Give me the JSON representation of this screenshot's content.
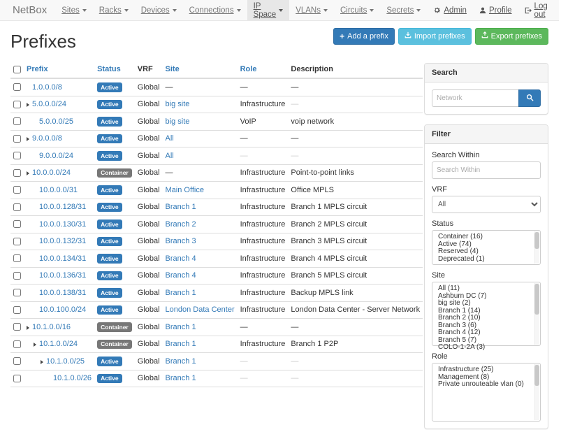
{
  "navbar": {
    "brand": "NetBox",
    "items": [
      {
        "label": "Sites",
        "active": false
      },
      {
        "label": "Racks",
        "active": false
      },
      {
        "label": "Devices",
        "active": false
      },
      {
        "label": "Connections",
        "active": false
      },
      {
        "label": "IP Space",
        "active": true
      },
      {
        "label": "VLANs",
        "active": false
      },
      {
        "label": "Circuits",
        "active": false
      },
      {
        "label": "Secrets",
        "active": false
      }
    ],
    "right": {
      "admin": "Admin",
      "profile": "Profile",
      "logout": "Log out"
    }
  },
  "page": {
    "title": "Prefixes"
  },
  "toolbar": {
    "add": "Add a prefix",
    "import": "Import prefixes",
    "export": "Export prefixes"
  },
  "table": {
    "columns": {
      "prefix": "Prefix",
      "status": "Status",
      "vrf": "VRF",
      "site": "Site",
      "role": "Role",
      "description": "Description"
    },
    "rows": [
      {
        "prefix": "1.0.0.0/8",
        "depth": 0,
        "children": false,
        "status": "Active",
        "vrf": "Global",
        "site": "—",
        "role": "—",
        "desc": "—",
        "site_muted": false,
        "role_muted": false,
        "desc_muted": false
      },
      {
        "prefix": "5.0.0.0/24",
        "depth": 0,
        "children": true,
        "status": "Active",
        "vrf": "Global",
        "site": "big site",
        "role": "Infrastructure",
        "desc": "—",
        "site_muted": false,
        "role_muted": false,
        "desc_muted": true
      },
      {
        "prefix": "5.0.0.0/25",
        "depth": 1,
        "children": false,
        "status": "Active",
        "vrf": "Global",
        "site": "big site",
        "role": "VoIP",
        "desc": "voip network",
        "site_muted": false,
        "role_muted": false,
        "desc_muted": false
      },
      {
        "prefix": "9.0.0.0/8",
        "depth": 0,
        "children": true,
        "status": "Active",
        "vrf": "Global",
        "site": "All",
        "role": "—",
        "desc": "—",
        "site_muted": false,
        "role_muted": false,
        "desc_muted": false
      },
      {
        "prefix": "9.0.0.0/24",
        "depth": 1,
        "children": false,
        "status": "Active",
        "vrf": "Global",
        "site": "All",
        "role": "—",
        "desc": "—",
        "site_muted": false,
        "role_muted": true,
        "desc_muted": true
      },
      {
        "prefix": "10.0.0.0/24",
        "depth": 0,
        "children": true,
        "status": "Container",
        "vrf": "Global",
        "site": "—",
        "role": "Infrastructure",
        "desc": "Point-to-point links",
        "site_muted": false,
        "role_muted": false,
        "desc_muted": false
      },
      {
        "prefix": "10.0.0.0/31",
        "depth": 1,
        "children": false,
        "status": "Active",
        "vrf": "Global",
        "site": "Main Office",
        "role": "Infrastructure",
        "desc": "Office MPLS",
        "site_muted": false,
        "role_muted": false,
        "desc_muted": false
      },
      {
        "prefix": "10.0.0.128/31",
        "depth": 1,
        "children": false,
        "status": "Active",
        "vrf": "Global",
        "site": "Branch 1",
        "role": "Infrastructure",
        "desc": "Branch 1 MPLS circuit",
        "site_muted": false,
        "role_muted": false,
        "desc_muted": false
      },
      {
        "prefix": "10.0.0.130/31",
        "depth": 1,
        "children": false,
        "status": "Active",
        "vrf": "Global",
        "site": "Branch 2",
        "role": "Infrastructure",
        "desc": "Branch 2 MPLS circuit",
        "site_muted": false,
        "role_muted": false,
        "desc_muted": false
      },
      {
        "prefix": "10.0.0.132/31",
        "depth": 1,
        "children": false,
        "status": "Active",
        "vrf": "Global",
        "site": "Branch 3",
        "role": "Infrastructure",
        "desc": "Branch 3 MPLS circuit",
        "site_muted": false,
        "role_muted": false,
        "desc_muted": false
      },
      {
        "prefix": "10.0.0.134/31",
        "depth": 1,
        "children": false,
        "status": "Active",
        "vrf": "Global",
        "site": "Branch 4",
        "role": "Infrastructure",
        "desc": "Branch 4 MPLS circuit",
        "site_muted": false,
        "role_muted": false,
        "desc_muted": false
      },
      {
        "prefix": "10.0.0.136/31",
        "depth": 1,
        "children": false,
        "status": "Active",
        "vrf": "Global",
        "site": "Branch 4",
        "role": "Infrastructure",
        "desc": "Branch 5 MPLS circuit",
        "site_muted": false,
        "role_muted": false,
        "desc_muted": false
      },
      {
        "prefix": "10.0.0.138/31",
        "depth": 1,
        "children": false,
        "status": "Active",
        "vrf": "Global",
        "site": "Branch 1",
        "role": "Infrastructure",
        "desc": "Backup MPLS link",
        "site_muted": false,
        "role_muted": false,
        "desc_muted": false
      },
      {
        "prefix": "10.0.100.0/24",
        "depth": 1,
        "children": false,
        "status": "Active",
        "vrf": "Global",
        "site": "London Data Center",
        "role": "Infrastructure",
        "desc": "London Data Center - Server Network",
        "site_muted": false,
        "role_muted": false,
        "desc_muted": false
      },
      {
        "prefix": "10.1.0.0/16",
        "depth": 0,
        "children": true,
        "status": "Container",
        "vrf": "Global",
        "site": "Branch 1",
        "role": "—",
        "desc": "—",
        "site_muted": false,
        "role_muted": false,
        "desc_muted": false
      },
      {
        "prefix": "10.1.0.0/24",
        "depth": 1,
        "children": true,
        "status": "Container",
        "vrf": "Global",
        "site": "Branch 1",
        "role": "Infrastructure",
        "desc": "Branch 1 P2P",
        "site_muted": false,
        "role_muted": false,
        "desc_muted": false
      },
      {
        "prefix": "10.1.0.0/25",
        "depth": 2,
        "children": true,
        "status": "Active",
        "vrf": "Global",
        "site": "Branch 1",
        "role": "—",
        "desc": "—",
        "site_muted": false,
        "role_muted": true,
        "desc_muted": true
      },
      {
        "prefix": "10.1.0.0/26",
        "depth": 3,
        "children": false,
        "status": "Active",
        "vrf": "Global",
        "site": "Branch 1",
        "role": "—",
        "desc": "—",
        "site_muted": false,
        "role_muted": true,
        "desc_muted": true
      }
    ]
  },
  "sidebar": {
    "search": {
      "title": "Search",
      "placeholder": "Network"
    },
    "filter": {
      "title": "Filter",
      "search_within": {
        "label": "Search Within",
        "placeholder": "Search Within"
      },
      "vrf": {
        "label": "VRF",
        "value": "All"
      },
      "status": {
        "label": "Status",
        "options": [
          "Container (16)",
          "Active (74)",
          "Reserved (4)",
          "Deprecated (1)"
        ]
      },
      "site": {
        "label": "Site",
        "options": [
          "All (11)",
          "Ashburn DC (7)",
          "big site (2)",
          "Branch 1 (14)",
          "Branch 2 (10)",
          "Branch 3 (6)",
          "Branch 4 (12)",
          "Branch 5 (7)",
          "COLO-1-2A (3)"
        ]
      },
      "role": {
        "label": "Role",
        "options": [
          "Infrastructure (25)",
          "Management (8)",
          "Private unrouteable vlan (0)"
        ]
      }
    }
  },
  "colors": {
    "link": "#337ab7",
    "badge_active": "#337ab7",
    "badge_container": "#777777",
    "btn_primary": "#337ab7",
    "btn_info": "#5bc0de",
    "btn_success": "#5cb85c",
    "navbar_bg": "#f8f8f8",
    "nav_active_bg": "#e7e7e7"
  }
}
